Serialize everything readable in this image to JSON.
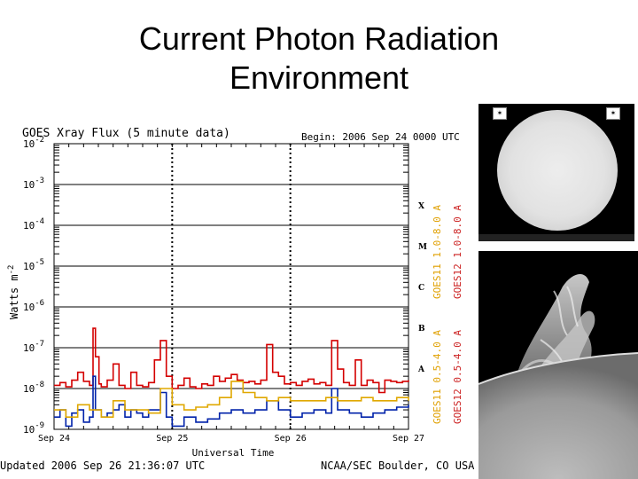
{
  "slide": {
    "title_line1": "Current Photon Radiation",
    "title_line2": "Environment"
  },
  "colors": {
    "goes11_long": "#d40000",
    "goes11_short": "#0022aa",
    "goes12_long": "#d88a00",
    "goes12_short": "#e0a800",
    "label_goes11": "#e0a000",
    "label_goes12": "#cc2222",
    "grid": "#000000"
  },
  "chart_data": {
    "type": "line",
    "title": "GOES Xray Flux (5 minute data)",
    "begin_label": "Begin:  2006 Sep 24  0000 UTC",
    "xlabel": "Universal Time",
    "ylabel": "Watts m",
    "ylabel_sup": "-2",
    "updated": "Updated 2006 Sep 26 21:36:07 UTC",
    "credit": "NCAA/SEC Boulder, CO USA",
    "x_ticks": [
      "Sep 24",
      "Sep 25",
      "Sep 26",
      "Sep 27"
    ],
    "y_scale": "log",
    "ylim": [
      1e-09,
      0.01
    ],
    "y_ticks": [
      {
        "base": "10",
        "exp": "-2"
      },
      {
        "base": "10",
        "exp": "-3"
      },
      {
        "base": "10",
        "exp": "-4"
      },
      {
        "base": "10",
        "exp": "-5"
      },
      {
        "base": "10",
        "exp": "-6"
      },
      {
        "base": "10",
        "exp": "-7"
      },
      {
        "base": "10",
        "exp": "-8"
      },
      {
        "base": "10",
        "exp": "-9"
      }
    ],
    "flare_classes": [
      "X",
      "M",
      "C",
      "B",
      "A"
    ],
    "series_labels_goes11": [
      "GOES11 1.0-8.0 A",
      "GOES11 0.5-4.0 A"
    ],
    "series_labels_goes12": [
      "GOES12 1.0-8.0 A",
      "GOES12 0.5-4.0 A"
    ],
    "series": [
      {
        "name": "GOES11 1.0-8.0 A",
        "x_days": [
          0.0,
          0.05,
          0.1,
          0.15,
          0.2,
          0.25,
          0.3,
          0.33,
          0.35,
          0.38,
          0.4,
          0.45,
          0.5,
          0.55,
          0.6,
          0.65,
          0.7,
          0.75,
          0.8,
          0.85,
          0.9,
          0.95,
          1.0,
          1.05,
          1.1,
          1.15,
          1.2,
          1.25,
          1.3,
          1.35,
          1.4,
          1.45,
          1.5,
          1.55,
          1.6,
          1.65,
          1.7,
          1.75,
          1.8,
          1.85,
          1.9,
          1.95,
          2.0,
          2.05,
          2.1,
          2.15,
          2.2,
          2.25,
          2.3,
          2.35,
          2.4,
          2.45,
          2.5,
          2.55,
          2.6,
          2.65,
          2.7,
          2.75,
          2.8,
          2.85,
          2.9,
          2.95,
          3.0
        ],
        "values": [
          1.2e-08,
          1.4e-08,
          1.1e-08,
          1.6e-08,
          2.5e-08,
          1.5e-08,
          1.2e-08,
          3e-07,
          6e-08,
          1.3e-08,
          1.1e-08,
          1.6e-08,
          4e-08,
          1.2e-08,
          1e-08,
          2.5e-08,
          1.2e-08,
          1.1e-08,
          1.4e-08,
          5e-08,
          1.5e-07,
          2e-08,
          1e-08,
          1.2e-08,
          1.8e-08,
          1.1e-08,
          1e-08,
          1.3e-08,
          1.2e-08,
          2e-08,
          1.5e-08,
          1.8e-08,
          2.2e-08,
          1.6e-08,
          1.4e-08,
          1.5e-08,
          1.3e-08,
          1.6e-08,
          1.2e-07,
          2.5e-08,
          2e-08,
          1.3e-08,
          1.4e-08,
          1.2e-08,
          1.5e-08,
          1.7e-08,
          1.3e-08,
          1.4e-08,
          1.2e-08,
          1.5e-07,
          3e-08,
          1.4e-08,
          1.2e-08,
          5e-08,
          1.2e-08,
          1.6e-08,
          1.4e-08,
          8e-09,
          1.6e-08,
          1.5e-08,
          1.4e-08,
          1.5e-08,
          1.6e-08
        ]
      },
      {
        "name": "GOES11 0.5-4.0 A",
        "x_days": [
          0.0,
          0.05,
          0.1,
          0.15,
          0.2,
          0.25,
          0.3,
          0.33,
          0.35,
          0.4,
          0.45,
          0.5,
          0.55,
          0.6,
          0.65,
          0.7,
          0.75,
          0.8,
          0.85,
          0.9,
          0.95,
          1.0,
          1.1,
          1.2,
          1.3,
          1.4,
          1.5,
          1.6,
          1.7,
          1.8,
          1.9,
          2.0,
          2.1,
          2.2,
          2.3,
          2.35,
          2.4,
          2.5,
          2.6,
          2.7,
          2.8,
          2.9,
          3.0
        ],
        "values": [
          2e-09,
          3e-09,
          1.2e-09,
          2.5e-09,
          3e-09,
          1.5e-09,
          2e-09,
          2e-08,
          3e-09,
          2e-09,
          2.5e-09,
          3e-09,
          4e-09,
          2e-09,
          3e-09,
          2.5e-09,
          2e-09,
          3e-09,
          3e-09,
          8e-09,
          2e-09,
          1.2e-09,
          2e-09,
          1.5e-09,
          1.8e-09,
          2.5e-09,
          3e-09,
          2.5e-09,
          3e-09,
          5e-09,
          3e-09,
          2e-09,
          2.5e-09,
          3e-09,
          2.5e-09,
          1e-08,
          3e-09,
          2.5e-09,
          2e-09,
          2.5e-09,
          3e-09,
          3.5e-09,
          4e-09
        ]
      },
      {
        "name": "GOES12 1.0-8.0 A",
        "x_days": [
          0.0,
          0.1,
          0.2,
          0.3,
          0.4,
          0.5,
          0.6,
          0.7,
          0.8,
          0.9,
          1.0,
          1.1,
          1.2,
          1.3,
          1.4,
          1.5,
          1.6,
          1.7,
          1.8,
          1.9,
          2.0,
          2.1,
          2.2,
          2.3,
          2.4,
          2.5,
          2.6,
          2.7,
          2.8,
          2.9,
          3.0
        ],
        "values": [
          3e-09,
          2e-09,
          4e-09,
          3e-09,
          2e-09,
          5e-09,
          3e-09,
          3e-09,
          2.5e-09,
          1e-08,
          4e-09,
          3e-09,
          3.5e-09,
          4e-09,
          6e-09,
          1.5e-08,
          8e-09,
          6e-09,
          5e-09,
          6e-09,
          5e-09,
          5e-09,
          5e-09,
          6e-09,
          5e-09,
          5e-09,
          6e-09,
          5e-09,
          5e-09,
          6e-09,
          5e-09
        ]
      }
    ]
  }
}
